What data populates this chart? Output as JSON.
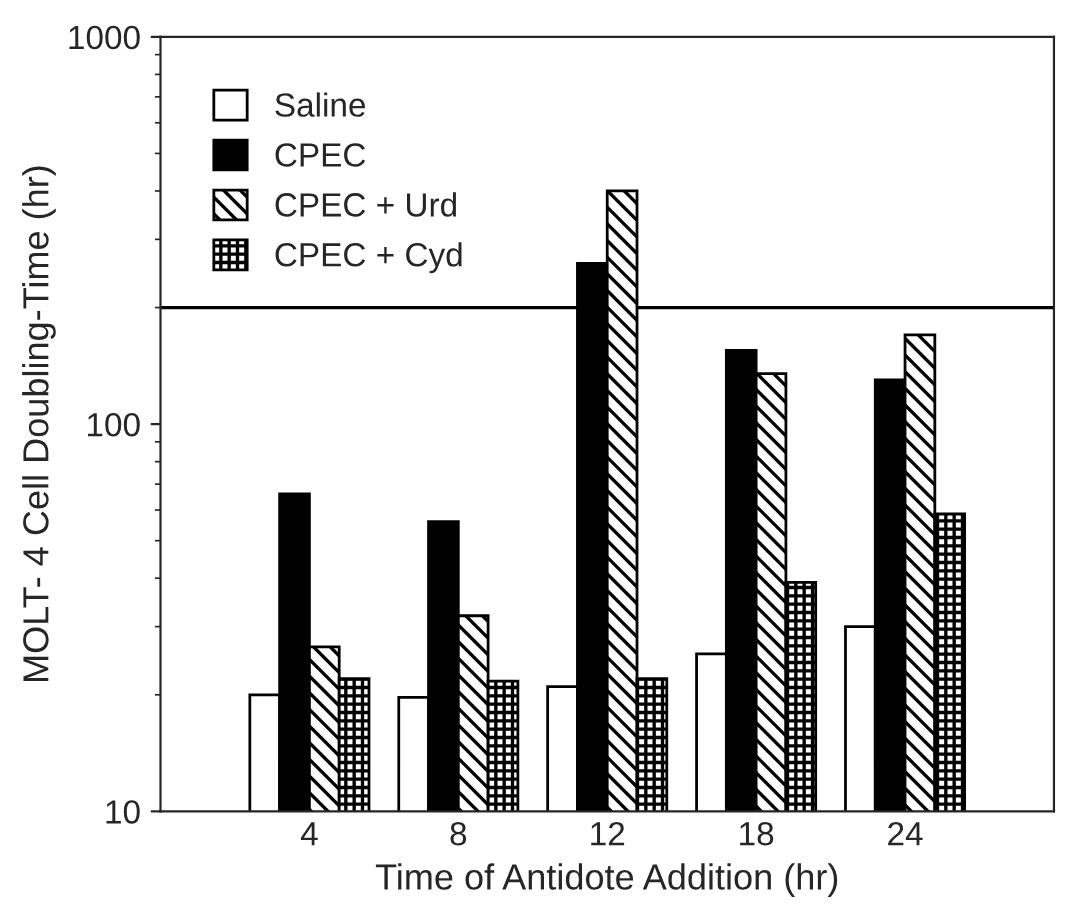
{
  "chart_data": {
    "type": "bar",
    "xlabel": "Time of Antidote Addition (hr)",
    "ylabel": "MOLT- 4 Cell Doubling-Time (hr)",
    "categories": [
      "4",
      "8",
      "12",
      "18",
      "24"
    ],
    "series": [
      {
        "name": "Saline",
        "color": "#ffffff",
        "values": [
          20,
          19.7,
          21,
          25.5,
          30
        ]
      },
      {
        "name": "CPEC",
        "color": "#000000",
        "values": [
          66,
          56,
          260,
          155,
          130
        ]
      },
      {
        "name": "CPEC + Urd",
        "color": "#000000",
        "values": [
          26.6,
          32,
          400,
          135,
          170
        ]
      },
      {
        "name": "CPEC + Cyd",
        "color": "#000000",
        "values": [
          22,
          21.7,
          22,
          39,
          58.6
        ]
      }
    ],
    "log": "y",
    "ylim": [
      10,
      1000
    ],
    "yticks": [
      10,
      100,
      1000
    ],
    "ref_lines": [
      {
        "axis": "y",
        "value": 200,
        "color": "#000000"
      }
    ],
    "legend": "top left",
    "grid": false
  }
}
